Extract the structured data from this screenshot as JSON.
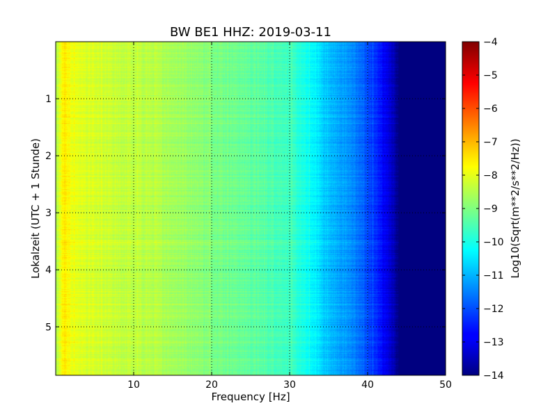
{
  "chart_data": {
    "type": "heatmap",
    "title": "BW BE1 HHZ: 2019-03-11",
    "xlabel": "Frequency [Hz]",
    "ylabel": "Lokalzeit (UTC + 1 Stunde)",
    "xlim": [
      0,
      50
    ],
    "ylim": [
      5.85,
      0
    ],
    "x_ticks": [
      10,
      20,
      30,
      40,
      50
    ],
    "y_ticks": [
      1,
      2,
      3,
      4,
      5
    ],
    "grid": true,
    "colormap": "jet",
    "colorbar": {
      "label": "Log10(Sqrt(m**2/s**2/Hz))",
      "range": [
        -14,
        -4
      ],
      "ticks": [
        -4,
        -5,
        -6,
        -7,
        -8,
        -9,
        -10,
        -11,
        -12,
        -13,
        -14
      ]
    },
    "frequency_profile": {
      "frequency_hz": [
        0,
        1,
        2,
        4,
        8,
        12,
        16,
        20,
        25,
        30,
        33,
        35,
        38,
        41,
        43,
        44,
        50
      ],
      "log10_amplitude": [
        -8.6,
        -7.6,
        -7.9,
        -8.15,
        -8.35,
        -8.45,
        -8.7,
        -9.0,
        -9.3,
        -9.65,
        -10.3,
        -10.9,
        -11.4,
        -12.3,
        -13.2,
        -14.0,
        -14.0
      ]
    }
  }
}
